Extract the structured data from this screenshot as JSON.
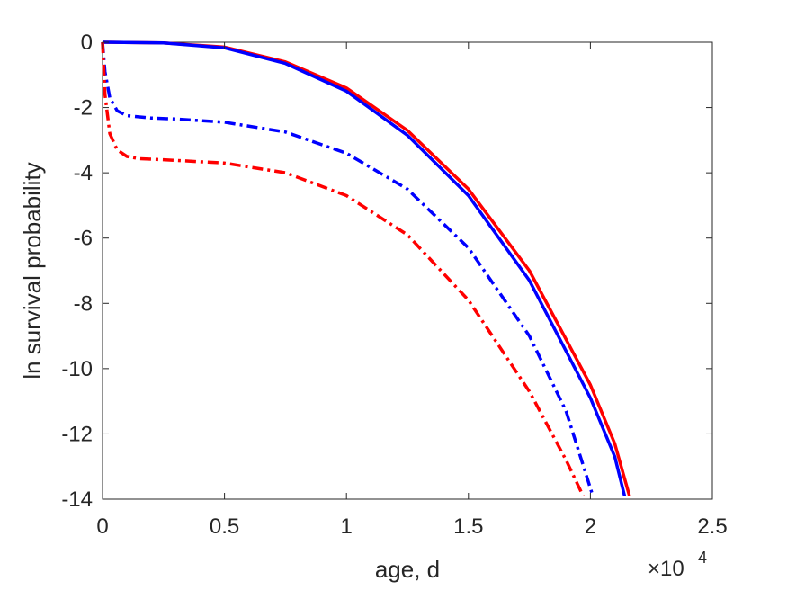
{
  "chart_data": {
    "type": "line",
    "xlabel": "age, d",
    "ylabel": "ln survival probability",
    "x_multiplier_label": "×10",
    "x_multiplier_exponent": "4",
    "xlim": [
      0,
      25000
    ],
    "ylim": [
      -14,
      0
    ],
    "xticks": [
      0,
      5000,
      10000,
      15000,
      20000,
      25000
    ],
    "xtick_labels": [
      "0",
      "0.5",
      "1",
      "1.5",
      "2",
      "2.5"
    ],
    "yticks": [
      0,
      -2,
      -4,
      -6,
      -8,
      -10,
      -12,
      -14
    ],
    "ytick_labels": [
      "0",
      "-2",
      "-4",
      "-6",
      "-8",
      "-10",
      "-12",
      "-14"
    ],
    "grid": false,
    "series": [
      {
        "color": "#ff0000",
        "style": "solid",
        "x": [
          0,
          2500,
          5000,
          7500,
          10000,
          12500,
          15000,
          17500,
          20000,
          21000,
          21600
        ],
        "y": [
          0,
          -0.02,
          -0.15,
          -0.6,
          -1.4,
          -2.7,
          -4.5,
          -7.0,
          -10.5,
          -12.3,
          -13.9
        ]
      },
      {
        "color": "#0000ff",
        "style": "solid",
        "x": [
          0,
          2500,
          5000,
          7500,
          10000,
          12500,
          15000,
          17500,
          20000,
          21000,
          21400
        ],
        "y": [
          0,
          -0.02,
          -0.17,
          -0.65,
          -1.5,
          -2.85,
          -4.7,
          -7.3,
          -10.9,
          -12.7,
          -13.9
        ]
      },
      {
        "color": "#0000ff",
        "style": "dashdot",
        "x": [
          0,
          100,
          300,
          600,
          1000,
          2000,
          3000,
          5000,
          7500,
          10000,
          12500,
          15000,
          17500,
          19000,
          20100
        ],
        "y": [
          0,
          -0.9,
          -1.7,
          -2.1,
          -2.25,
          -2.32,
          -2.35,
          -2.45,
          -2.75,
          -3.4,
          -4.5,
          -6.3,
          -9.0,
          -11.3,
          -13.9
        ]
      },
      {
        "color": "#ff0000",
        "style": "dashdot",
        "x": [
          0,
          100,
          300,
          600,
          1000,
          1500,
          2500,
          5000,
          7500,
          10000,
          12500,
          15000,
          17500,
          19000,
          19700
        ],
        "y": [
          0,
          -1.6,
          -2.8,
          -3.3,
          -3.5,
          -3.57,
          -3.6,
          -3.7,
          -4.0,
          -4.7,
          -5.9,
          -7.9,
          -10.7,
          -12.8,
          -13.9
        ]
      }
    ]
  }
}
